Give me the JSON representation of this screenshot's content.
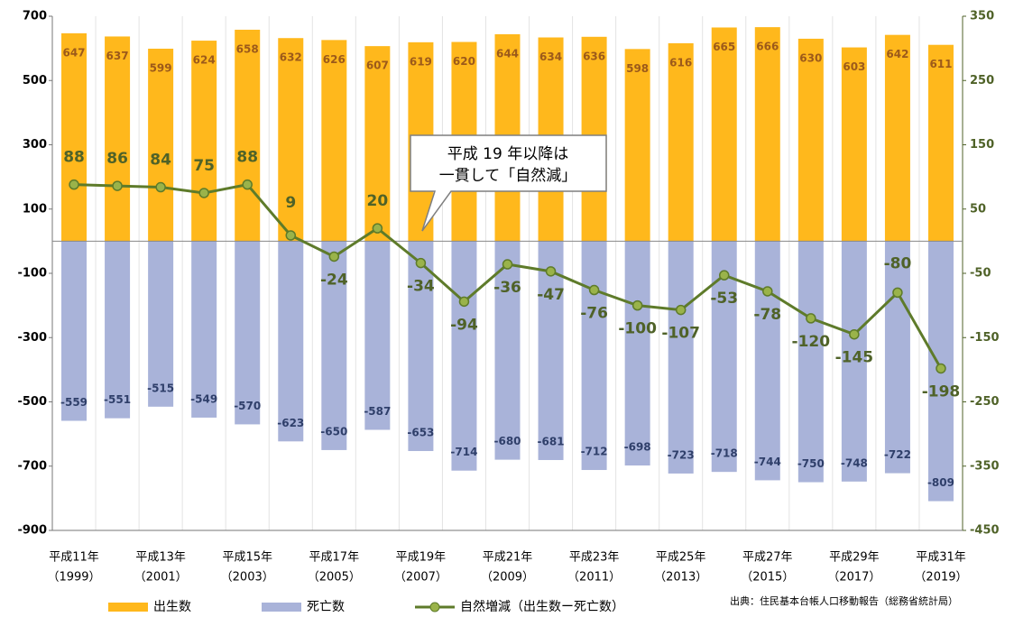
{
  "chart_data": {
    "type": "bar_line",
    "annotation": [
      "平成 19 年以降は",
      "一貫して「自然減」"
    ],
    "source": "出典：住民基本台帳人口移動報告（総務省統計局）",
    "categories": [
      [
        "平成11年",
        "（1999）"
      ],
      null,
      [
        "平成13年",
        "（2001）"
      ],
      null,
      [
        "平成15年",
        "（2003）"
      ],
      null,
      [
        "平成17年",
        "（2005）"
      ],
      null,
      [
        "平成19年",
        "（2007）"
      ],
      null,
      [
        "平成21年",
        "（2009）"
      ],
      null,
      [
        "平成23年",
        "（2011）"
      ],
      null,
      [
        "平成25年",
        "（2013）"
      ],
      null,
      [
        "平成27年",
        "（2015）"
      ],
      null,
      [
        "平成29年",
        "（2017）"
      ],
      null,
      [
        "平成31年",
        "（2019）"
      ]
    ],
    "series": [
      {
        "name": "出生数",
        "type": "bar",
        "color": "#FFB81C",
        "label_color": "#9C5A1A",
        "values": [
          647,
          637,
          599,
          624,
          658,
          632,
          626,
          607,
          619,
          620,
          644,
          634,
          636,
          598,
          616,
          665,
          666,
          630,
          603,
          642,
          611
        ]
      },
      {
        "name": "死亡数",
        "type": "bar",
        "color": "#A9B3D9",
        "label_color": "#2F3F6A",
        "values": [
          -559,
          -551,
          -515,
          -549,
          -570,
          -623,
          -650,
          -587,
          -653,
          -714,
          -680,
          -681,
          -712,
          -698,
          -723,
          -718,
          -744,
          -750,
          -748,
          -722,
          -809
        ]
      },
      {
        "name": "自然増減（出生数ー死亡数）",
        "type": "line",
        "axis": "y2",
        "color": "#5E7B2A",
        "marker_color": "#9AB34A",
        "values": [
          88,
          86,
          84,
          75,
          88,
          9,
          -24,
          20,
          -34,
          -94,
          -36,
          -47,
          -76,
          -100,
          -107,
          -53,
          -78,
          -120,
          -145,
          -80,
          -198
        ]
      }
    ],
    "ylim": [
      -900,
      700
    ],
    "yticks": [
      -900,
      -700,
      -500,
      -300,
      -100,
      100,
      300,
      500,
      700
    ],
    "y2lim": [
      -450,
      350
    ],
    "y2ticks": [
      -450,
      -350,
      -250,
      -150,
      -50,
      50,
      150,
      250,
      350
    ],
    "y2_color": "#4F6228"
  }
}
